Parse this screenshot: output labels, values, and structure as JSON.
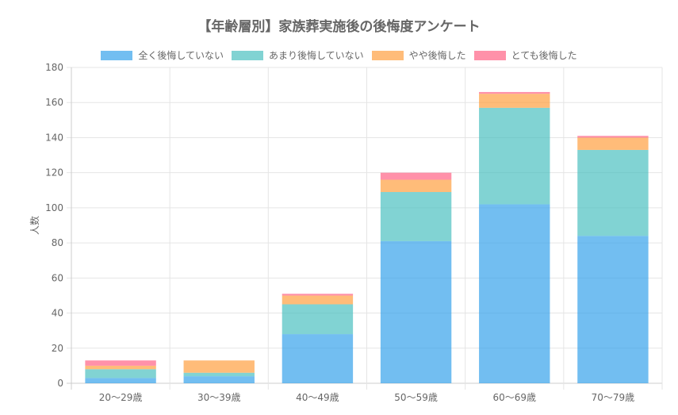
{
  "chart_data": {
    "type": "bar",
    "stacked": true,
    "title": "【年齢層別】家族葬実施後の後悔度アンケート",
    "xlabel": "",
    "ylabel": "人数",
    "ylim": [
      0,
      180
    ],
    "yticks": [
      0,
      20,
      40,
      60,
      80,
      100,
      120,
      140,
      160,
      180
    ],
    "grid": true,
    "legend_position": "top",
    "categories": [
      "20〜29歳",
      "30〜39歳",
      "40〜49歳",
      "50〜59歳",
      "60〜69歳",
      "70〜79歳"
    ],
    "series": [
      {
        "name": "全く後悔していない",
        "color": "#36A2EB",
        "values": [
          3,
          4,
          28,
          81,
          102,
          84
        ]
      },
      {
        "name": "あまり後悔していない",
        "color": "#4BC0C0",
        "values": [
          5,
          2,
          17,
          28,
          55,
          49
        ]
      },
      {
        "name": "やや後悔した",
        "color": "#FF9F40",
        "values": [
          2,
          7,
          5,
          7,
          8,
          7
        ]
      },
      {
        "name": "とても後悔した",
        "color": "#FF6384",
        "values": [
          3,
          0,
          1,
          4,
          1,
          1
        ]
      }
    ]
  }
}
